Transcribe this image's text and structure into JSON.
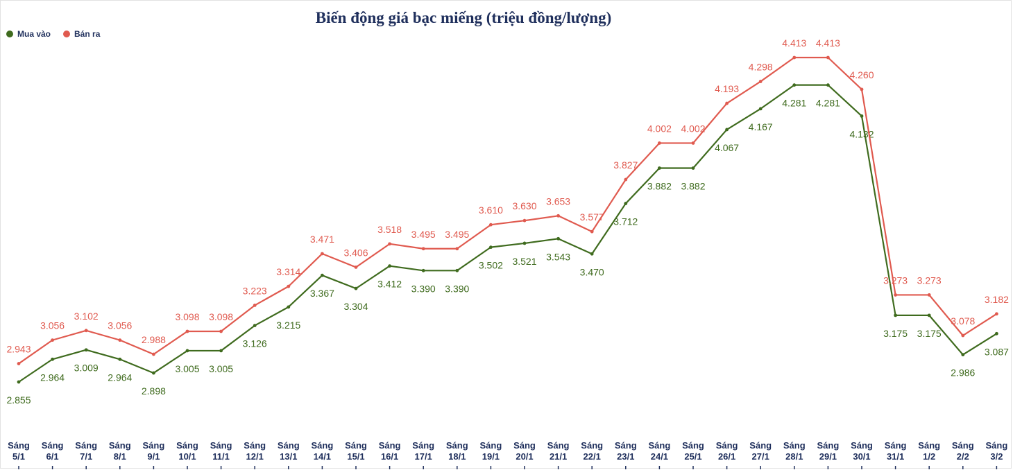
{
  "chart_data": {
    "type": "line",
    "title": "Biến động giá bạc miếng (triệu đồng/lượng)",
    "xlabel": "",
    "ylabel": "",
    "legend_position": "top-left",
    "grid": false,
    "ylim": [
      2.7,
      4.5
    ],
    "x_prefix": "Sáng",
    "categories": [
      "5/1",
      "6/1",
      "7/1",
      "8/1",
      "9/1",
      "10/1",
      "11/1",
      "12/1",
      "13/1",
      "14/1",
      "15/1",
      "16/1",
      "17/1",
      "18/1",
      "19/1",
      "20/1",
      "21/1",
      "22/1",
      "23/1",
      "24/1",
      "25/1",
      "26/1",
      "27/1",
      "28/1",
      "29/1",
      "30/1",
      "31/1",
      "1/2",
      "2/2",
      "3/2"
    ],
    "series": [
      {
        "name": "Mua vào",
        "color": "#3f6b1e",
        "values": [
          2.855,
          2.964,
          3.009,
          2.964,
          2.898,
          3.005,
          3.005,
          3.126,
          3.215,
          3.367,
          3.304,
          3.412,
          3.39,
          3.39,
          3.502,
          3.521,
          3.543,
          3.47,
          3.712,
          3.882,
          3.882,
          4.067,
          4.167,
          4.281,
          4.281,
          4.132,
          3.175,
          3.175,
          2.986,
          3.087
        ],
        "labels": [
          "2.855",
          "2.964",
          "3.009",
          "2.964",
          "2.898",
          "3.005",
          "3.005",
          "3.126",
          "3.215",
          "3.367",
          "3.304",
          "3.412",
          "3.390",
          "3.390",
          "3.502",
          "3.521",
          "3.543",
          "3.470",
          "3.712",
          "3.882",
          "3.882",
          "4.067",
          "4.167",
          "4.281",
          "4.281",
          "4.132",
          "3.175",
          "3.175",
          "2.986",
          "3.087"
        ]
      },
      {
        "name": "Bán ra",
        "color": "#e05a4f",
        "values": [
          2.943,
          3.056,
          3.102,
          3.056,
          2.988,
          3.098,
          3.098,
          3.223,
          3.314,
          3.471,
          3.406,
          3.518,
          3.495,
          3.495,
          3.61,
          3.63,
          3.653,
          3.577,
          3.827,
          4.002,
          4.002,
          4.193,
          4.298,
          4.413,
          4.413,
          4.26,
          3.273,
          3.273,
          3.078,
          3.182
        ],
        "labels": [
          "2.943",
          "3.056",
          "3.102",
          "3.056",
          "2.988",
          "3.098",
          "3.098",
          "3.223",
          "3.314",
          "3.471",
          "3.406",
          "3.518",
          "3.495",
          "3.495",
          "3.610",
          "3.630",
          "3.653",
          "3.577",
          "3.827",
          "4.002",
          "4.002",
          "4.193",
          "4.298",
          "4.413",
          "4.413",
          "4.260",
          "3.273",
          "3.273",
          "3.078",
          "3.182"
        ]
      }
    ]
  }
}
